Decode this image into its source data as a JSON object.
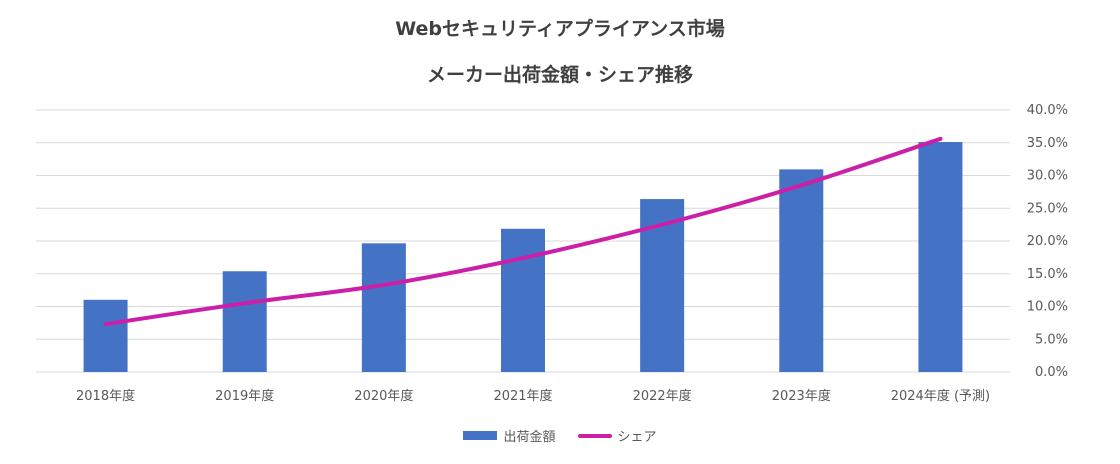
{
  "chart_data": {
    "type": "bar",
    "title": "Webセキュリティアプライアンス市場",
    "subtitle": "メーカー出荷金額・シェア推移",
    "categories": [
      "2018年度",
      "2019年度",
      "2020年度",
      "2021年度",
      "2022年度",
      "2023年度",
      "2024年度 (予測)"
    ],
    "series": [
      {
        "name": "出荷金額",
        "type": "bar",
        "color": "#4472C4",
        "axis": "left",
        "values": [
          12.4,
          17.3,
          22.1,
          24.6,
          29.7,
          34.8,
          39.5
        ]
      },
      {
        "name": "シェア",
        "type": "line",
        "color": "#CC1FA8",
        "axis": "right",
        "values": [
          7.3,
          10.5,
          13.3,
          17.4,
          22.5,
          28.5,
          35.6
        ]
      }
    ],
    "y_left": {
      "range": [
        0,
        45
      ],
      "ticks_shown": false
    },
    "y_right": {
      "range": [
        0,
        40
      ],
      "ticks": [
        "0.0%",
        "5.0%",
        "10.0%",
        "15.0%",
        "20.0%",
        "25.0%",
        "30.0%",
        "35.0%",
        "40.0%"
      ]
    },
    "grid": true,
    "legend": "bottom-center"
  },
  "legend": {
    "bar_label": "出荷金額",
    "line_label": "シェア"
  }
}
